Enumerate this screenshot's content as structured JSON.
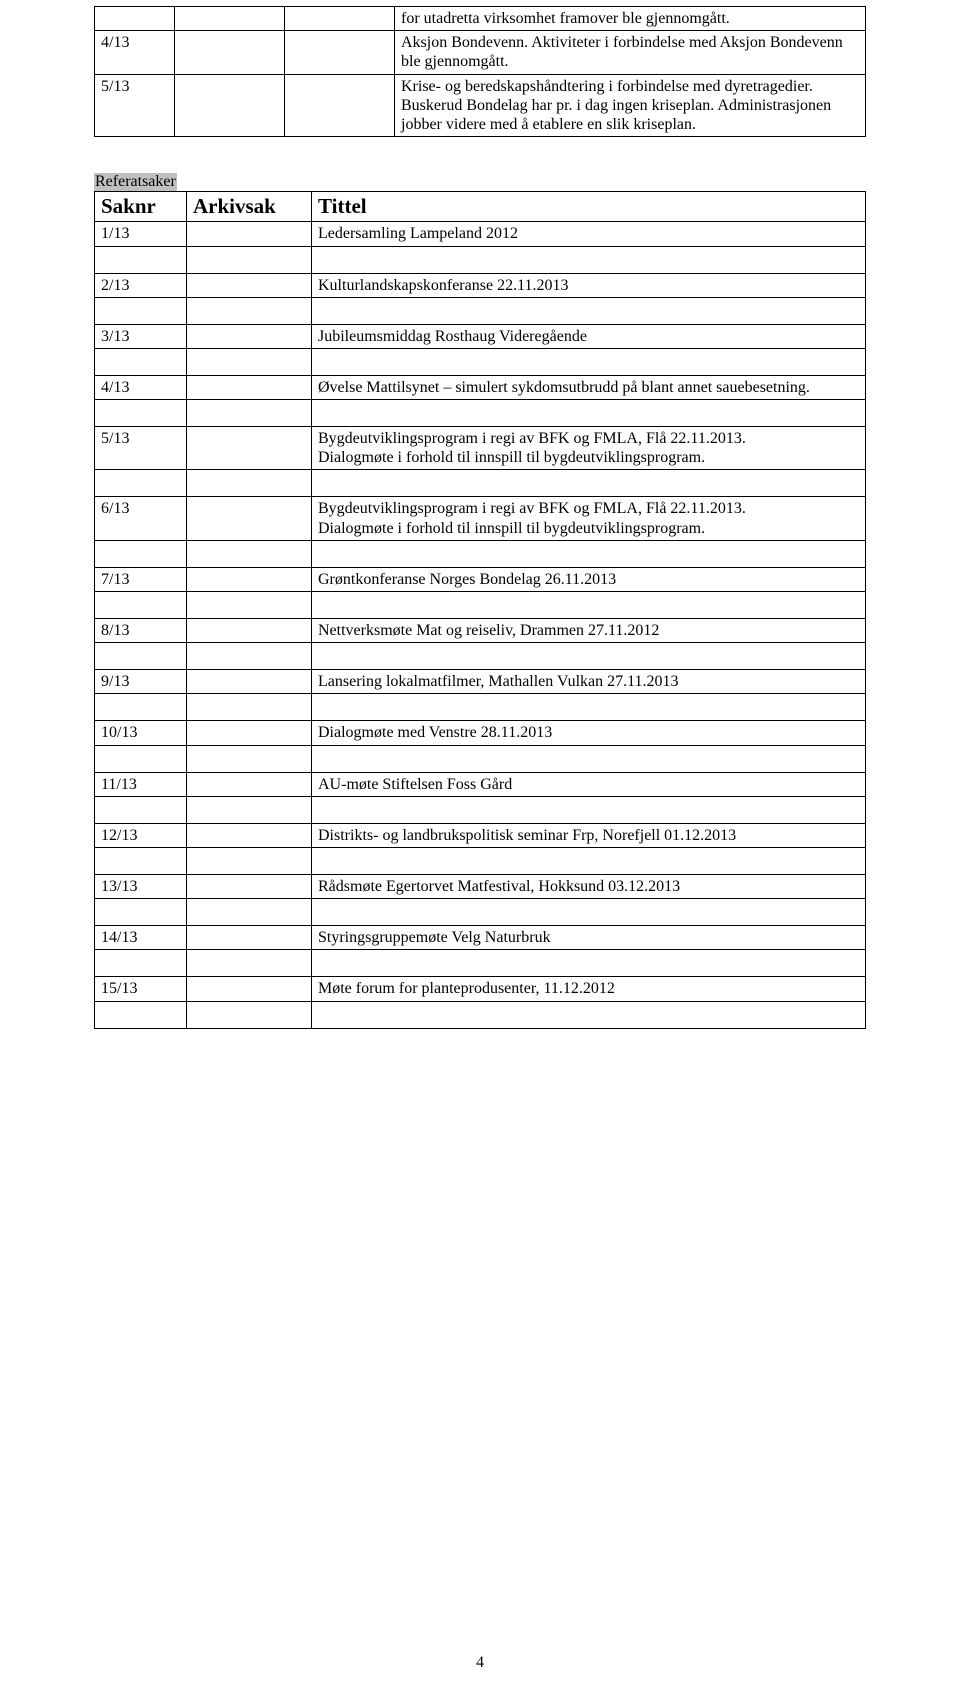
{
  "table1": {
    "rows": [
      {
        "c1": "",
        "c2": "",
        "c3": "",
        "c4": "for utadretta virksomhet framover ble gjennomgått."
      },
      {
        "c1": "4/13",
        "c2": "",
        "c3": "",
        "c4": "Aksjon Bondevenn. Aktiviteter i forbindelse med Aksjon Bondevenn ble gjennomgått."
      },
      {
        "c1": "5/13",
        "c2": "",
        "c3": "",
        "c4": "Krise- og beredskapshåndtering i forbindelse med dyretragedier. Buskerud Bondelag har pr. i dag ingen kriseplan. Administrasjonen jobber videre med å etablere en slik kriseplan."
      }
    ]
  },
  "section_heading": "Referatsaker",
  "table2": {
    "headers": {
      "c1": "Saknr",
      "c2": "Arkivsak",
      "c3": "Tittel"
    },
    "rows": [
      {
        "c1": "1/13",
        "c2": "",
        "c3": "Ledersamling Lampeland 2012"
      },
      {
        "c1": "2/13",
        "c2": "",
        "c3": "Kulturlandskapskonferanse 22.11.2013"
      },
      {
        "c1": "3/13",
        "c2": "",
        "c3": "Jubileumsmiddag Rosthaug Videregående"
      },
      {
        "c1": "4/13",
        "c2": "",
        "c3": "Øvelse Mattilsynet – simulert sykdomsutbrudd på blant annet sauebesetning."
      },
      {
        "c1": "5/13",
        "c2": "",
        "c3": "Bygdeutviklingsprogram i regi av BFK og FMLA, Flå 22.11.2013.\nDialogmøte i forhold til innspill til bygdeutviklingsprogram."
      },
      {
        "c1": "6/13",
        "c2": "",
        "c3": "Bygdeutviklingsprogram i regi av BFK og FMLA, Flå 22.11.2013.\nDialogmøte i forhold til innspill til bygdeutviklingsprogram."
      },
      {
        "c1": "7/13",
        "c2": "",
        "c3": "Grøntkonferanse Norges Bondelag 26.11.2013"
      },
      {
        "c1": "8/13",
        "c2": "",
        "c3": "Nettverksmøte Mat og reiseliv, Drammen 27.11.2012"
      },
      {
        "c1": "9/13",
        "c2": "",
        "c3": "Lansering lokalmatfilmer, Mathallen Vulkan 27.11.2013"
      },
      {
        "c1": "10/13",
        "c2": "",
        "c3": "Dialogmøte med Venstre 28.11.2013"
      },
      {
        "c1": "11/13",
        "c2": "",
        "c3": "AU-møte Stiftelsen Foss Gård"
      },
      {
        "c1": "12/13",
        "c2": "",
        "c3": "Distrikts- og landbrukspolitisk seminar Frp, Norefjell 01.12.2013"
      },
      {
        "c1": "13/13",
        "c2": "",
        "c3": "Rådsmøte Egertorvet Matfestival, Hokksund 03.12.2013"
      },
      {
        "c1": "14/13",
        "c2": "",
        "c3": "Styringsgruppemøte Velg Naturbruk"
      },
      {
        "c1": "15/13",
        "c2": "",
        "c3": "Møte forum for planteprodusenter, 11.12.2012"
      }
    ]
  },
  "page_number": "4"
}
